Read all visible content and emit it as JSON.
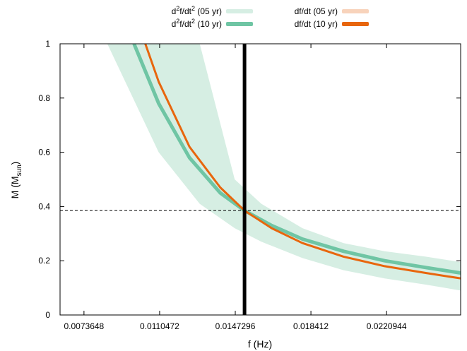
{
  "chart_data": {
    "type": "line",
    "xlabel": "f (Hz)",
    "ylabel": "M (M",
    "ylabel_sub": "sun",
    "ylabel_close": ")",
    "xlim": [
      0.0062,
      0.0257
    ],
    "ylim": [
      0,
      1
    ],
    "xticks": [
      {
        "value": 0.0073648,
        "label": "0.0073648"
      },
      {
        "value": 0.0110472,
        "label": "0.0110472"
      },
      {
        "value": 0.0147296,
        "label": "0.0147296"
      },
      {
        "value": 0.018412,
        "label": "0.018412"
      },
      {
        "value": 0.0220944,
        "label": "0.0220944"
      }
    ],
    "yticks": [
      {
        "value": 0,
        "label": "0"
      },
      {
        "value": 0.2,
        "label": "0.2"
      },
      {
        "value": 0.4,
        "label": "0.4"
      },
      {
        "value": 0.6,
        "label": "0.6"
      },
      {
        "value": 0.8,
        "label": "0.8"
      },
      {
        "value": 1,
        "label": "1"
      }
    ],
    "grid": false,
    "legend_position": "top",
    "reference_lines": {
      "vertical_x": 0.01518,
      "horizontal_y": 0.385
    },
    "series": [
      {
        "legend_prefix": "d",
        "legend_sup1": "2",
        "legend_mid": "f/dt",
        "legend_sup2": "2",
        "legend_suffix": " (05 yr)",
        "kind": "band",
        "color": "#d6eee3",
        "x": [
          0.0085,
          0.011,
          0.013,
          0.0147,
          0.016,
          0.018,
          0.02,
          0.022,
          0.024,
          0.0257
        ],
        "lower": [
          1.0,
          0.6,
          0.41,
          0.32,
          0.27,
          0.21,
          0.165,
          0.135,
          0.112,
          0.09
        ],
        "upper": [
          1.0,
          1.0,
          1.0,
          0.5,
          0.41,
          0.32,
          0.265,
          0.235,
          0.215,
          0.195
        ]
      },
      {
        "legend_prefix": "d",
        "legend_sup1": "2",
        "legend_mid": "f/dt",
        "legend_sup2": "2",
        "legend_suffix": " (10 yr)",
        "kind": "line",
        "color": "#6fc5a4",
        "width": 5,
        "x": [
          0.0098,
          0.011,
          0.0125,
          0.014,
          0.01518,
          0.0165,
          0.018,
          0.02,
          0.022,
          0.024,
          0.0257
        ],
        "y": [
          1.0,
          0.78,
          0.58,
          0.45,
          0.385,
          0.33,
          0.28,
          0.235,
          0.2,
          0.175,
          0.155
        ]
      },
      {
        "legend_prefix": "df/dt",
        "legend_suffix": " (05 yr)",
        "kind": "legend-only",
        "color": "#f8d3bb",
        "width": 5
      },
      {
        "legend_prefix": "df/dt",
        "legend_suffix": " (10 yr)",
        "kind": "line",
        "color": "#e8660d",
        "width": 3,
        "x": [
          0.01035,
          0.011,
          0.0125,
          0.014,
          0.01518,
          0.0165,
          0.018,
          0.02,
          0.022,
          0.024,
          0.0257
        ],
        "y": [
          1.0,
          0.86,
          0.62,
          0.47,
          0.385,
          0.32,
          0.265,
          0.215,
          0.18,
          0.155,
          0.135
        ]
      }
    ]
  }
}
